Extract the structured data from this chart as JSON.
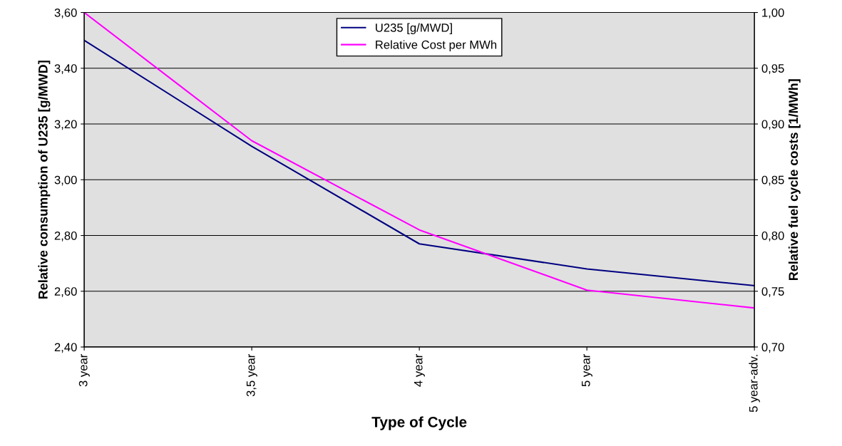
{
  "chart_data": {
    "type": "line",
    "xlabel": "Type of Cycle",
    "ylabel": "Relative consumption of U235 [g/MWD]",
    "y2label": "Relative fuel cycle costs [1/MWh]",
    "categories": [
      "3 year",
      "3,5 year",
      "4 year",
      "5 year",
      "5 year-adv."
    ],
    "series": [
      {
        "name": "U235 [g/MWD]",
        "color": "#000080",
        "values": [
          3.5,
          3.12,
          2.77,
          2.68,
          2.62
        ]
      },
      {
        "name": "Relative Cost per MWh",
        "color": "#ff00ff",
        "axis": "y2",
        "values": [
          1.0,
          0.885,
          0.805,
          0.751,
          0.735
        ]
      }
    ],
    "ylim": [
      2.4,
      3.6
    ],
    "yticks": [
      {
        "value": 2.4,
        "label": "2,40"
      },
      {
        "value": 2.6,
        "label": "2,60"
      },
      {
        "value": 2.8,
        "label": "2,80"
      },
      {
        "value": 3.0,
        "label": "3,00"
      },
      {
        "value": 3.2,
        "label": "3,20"
      },
      {
        "value": 3.4,
        "label": "3,40"
      },
      {
        "value": 3.6,
        "label": "3,60"
      }
    ],
    "y2lim": [
      0.7,
      1.0
    ],
    "y2ticks": [
      {
        "value": 0.7,
        "label": "0,70"
      },
      {
        "value": 0.75,
        "label": "0,75"
      },
      {
        "value": 0.8,
        "label": "0,80"
      },
      {
        "value": 0.85,
        "label": "0,85"
      },
      {
        "value": 0.9,
        "label": "0,90"
      },
      {
        "value": 0.95,
        "label": "0,95"
      },
      {
        "value": 1.0,
        "label": "1,00"
      }
    ],
    "grid": "y",
    "legend": "top"
  }
}
